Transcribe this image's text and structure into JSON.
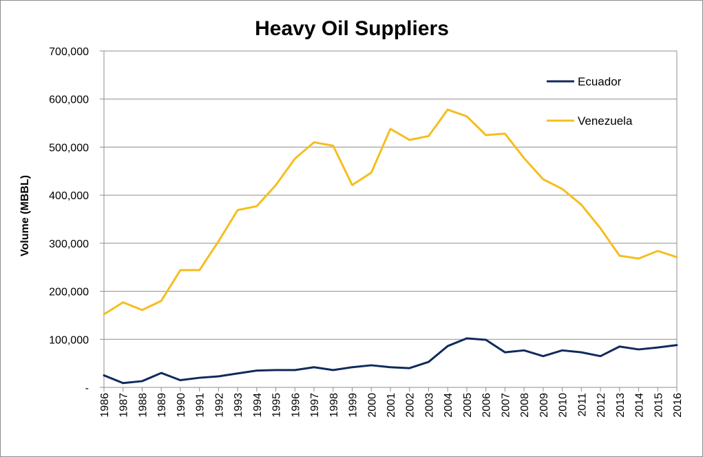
{
  "chart_data": {
    "type": "line",
    "title": "Heavy Oil Suppliers",
    "xlabel": "",
    "ylabel": "Volume (MBBL)",
    "ylim": [
      0,
      700000
    ],
    "yticks": [
      0,
      100000,
      200000,
      300000,
      400000,
      500000,
      600000,
      700000
    ],
    "ytick_labels": [
      "-",
      "100,000",
      "200,000",
      "300,000",
      "400,000",
      "500,000",
      "600,000",
      "700,000"
    ],
    "grid": true,
    "legend_position": "top-right",
    "x": [
      "1986",
      "1987",
      "1988",
      "1989",
      "1990",
      "1991",
      "1992",
      "1993",
      "1994",
      "1995",
      "1996",
      "1997",
      "1998",
      "1999",
      "2000",
      "2001",
      "2002",
      "2003",
      "2004",
      "2005",
      "2006",
      "2007",
      "2008",
      "2009",
      "2010",
      "2011",
      "2012",
      "2013",
      "2014",
      "2015",
      "2016"
    ],
    "series": [
      {
        "name": "Ecuador",
        "color": "#0f2a5c",
        "values": [
          25000,
          9000,
          13000,
          30000,
          15000,
          20000,
          23000,
          29000,
          35000,
          36000,
          36000,
          42000,
          36000,
          42000,
          46000,
          42000,
          40000,
          53000,
          86000,
          102000,
          99000,
          73000,
          77000,
          65000,
          77000,
          73000,
          65000,
          85000,
          79000,
          83000,
          88000
        ]
      },
      {
        "name": "Venezuela",
        "color": "#f5be1e",
        "values": [
          152000,
          177000,
          161000,
          180000,
          244000,
          244000,
          304000,
          369000,
          377000,
          421000,
          476000,
          510000,
          503000,
          421000,
          447000,
          538000,
          515000,
          523000,
          578000,
          564000,
          525000,
          528000,
          477000,
          433000,
          413000,
          380000,
          331000,
          274000,
          268000,
          284000,
          271000
        ]
      }
    ]
  }
}
